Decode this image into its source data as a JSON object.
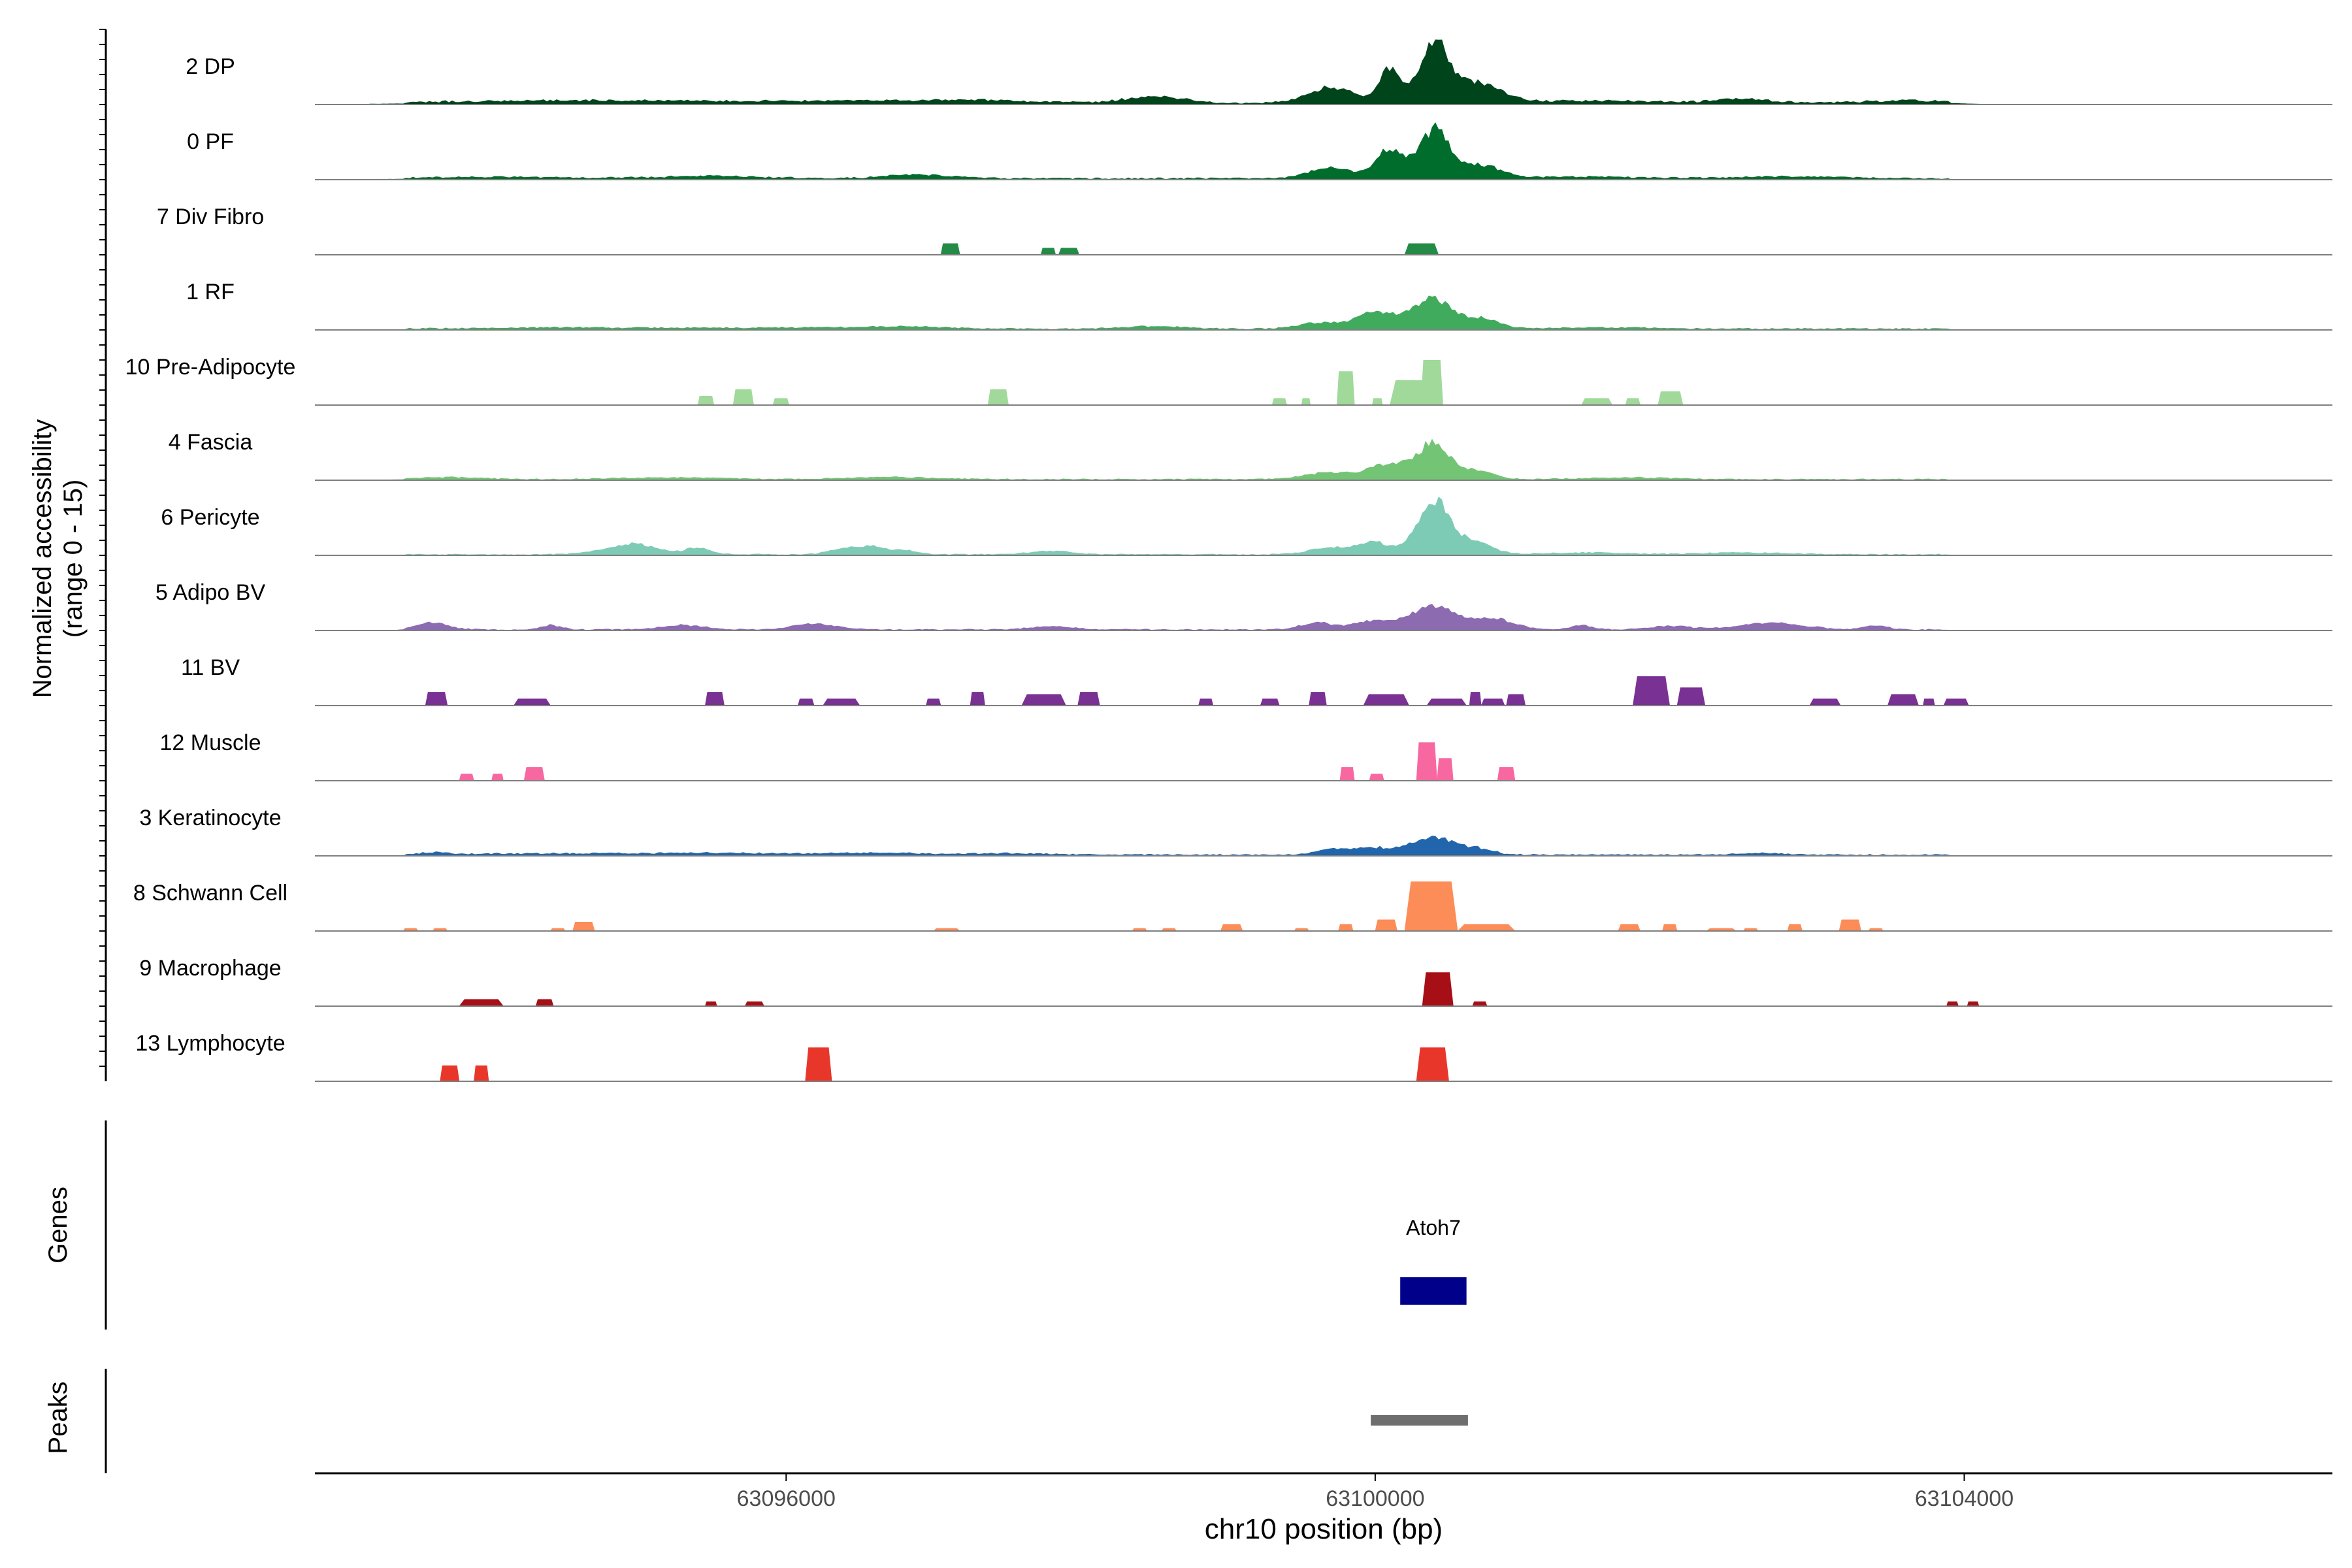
{
  "chart_data": {
    "type": "area",
    "title": "",
    "chromosome": "chr10",
    "xlabel": "chr10 position (bp)",
    "ylabel_line1": "Normalized accessibility",
    "ylabel_line2": "(range 0 - 15)",
    "ylim": [
      0,
      15
    ],
    "xlim": [
      63092800,
      63106500
    ],
    "x_ticks": [
      {
        "value": 63096000,
        "label": "63096000"
      },
      {
        "value": 63100000,
        "label": "63100000"
      },
      {
        "value": 63104000,
        "label": "63104000"
      }
    ],
    "track_labels": {
      "genes": "Genes",
      "peaks": "Peaks"
    },
    "series": [
      {
        "name": "2 DP",
        "color": "#00441B",
        "baseline": 0.45,
        "peaks": [
          [
            63094200,
            0.4,
            900
          ],
          [
            63095300,
            0.4,
            900
          ],
          [
            63096700,
            0.5,
            700
          ],
          [
            63097400,
            0.4,
            500
          ],
          [
            63098500,
            1.5,
            260
          ],
          [
            63099700,
            3.5,
            220
          ],
          [
            63100100,
            7.5,
            100
          ],
          [
            63100400,
            12.5,
            140
          ],
          [
            63100700,
            4.5,
            220
          ],
          [
            63101500,
            0.5,
            600
          ],
          [
            63102500,
            0.9,
            250
          ],
          [
            63103600,
            0.5,
            400
          ]
        ]
      },
      {
        "name": "0 PF",
        "color": "#006D2C",
        "baseline": 0.35,
        "peaks": [
          [
            63094000,
            0.3,
            700
          ],
          [
            63095500,
            0.5,
            500
          ],
          [
            63096900,
            0.9,
            300
          ],
          [
            63099700,
            2.5,
            200
          ],
          [
            63100100,
            6.5,
            130
          ],
          [
            63100400,
            10.5,
            140
          ],
          [
            63100700,
            3.0,
            200
          ],
          [
            63101400,
            0.4,
            500
          ],
          [
            63102800,
            0.4,
            500
          ]
        ]
      },
      {
        "name": "7 Div Fibro",
        "color": "#238B45",
        "baseline": 0,
        "blocks": [
          [
            63097050,
            63097180,
            2.5
          ],
          [
            63097730,
            63097830,
            1.5
          ],
          [
            63097850,
            63097990,
            1.5
          ],
          [
            63100200,
            63100430,
            2.5
          ]
        ]
      },
      {
        "name": "1 RF",
        "color": "#41AB5D",
        "baseline": 0.3,
        "peaks": [
          [
            63094500,
            0.3,
            800
          ],
          [
            63096000,
            0.3,
            600
          ],
          [
            63096800,
            0.5,
            400
          ],
          [
            63098500,
            0.6,
            300
          ],
          [
            63099600,
            1.3,
            200
          ],
          [
            63100000,
            3.5,
            200
          ],
          [
            63100400,
            6.5,
            200
          ],
          [
            63100750,
            2.0,
            150
          ],
          [
            63101500,
            0.3,
            500
          ]
        ]
      },
      {
        "name": "10 Pre-Adipocyte",
        "color": "#A1D99B",
        "baseline": 0,
        "blocks": [
          [
            63095400,
            63095510,
            2.0
          ],
          [
            63095640,
            63095780,
            3.5
          ],
          [
            63095910,
            63096020,
            1.5
          ],
          [
            63097370,
            63097510,
            3.5
          ],
          [
            63099300,
            63099400,
            1.5
          ],
          [
            63099500,
            63099560,
            1.5
          ],
          [
            63099740,
            63099860,
            7.5
          ],
          [
            63099980,
            63100050,
            1.5
          ],
          [
            63100100,
            63100430,
            5.5
          ],
          [
            63100310,
            63100460,
            10.0
          ],
          [
            63101400,
            63101610,
            1.5
          ],
          [
            63101700,
            63101800,
            1.5
          ],
          [
            63101920,
            63102090,
            3.0
          ]
        ]
      },
      {
        "name": "4 Fascia",
        "color": "#74C476",
        "baseline": 0.25,
        "peaks": [
          [
            63093700,
            0.5,
            300
          ],
          [
            63095200,
            0.4,
            500
          ],
          [
            63096700,
            0.5,
            400
          ],
          [
            63099700,
            1.5,
            250
          ],
          [
            63100100,
            3.5,
            180
          ],
          [
            63100400,
            8.0,
            150
          ],
          [
            63100700,
            2.0,
            150
          ],
          [
            63101700,
            0.4,
            400
          ]
        ]
      },
      {
        "name": "6 Pericyte",
        "color": "#7ECBB5",
        "baseline": 0.25,
        "peaks": [
          [
            63094800,
            0.8,
            200
          ],
          [
            63095000,
            2.0,
            200
          ],
          [
            63095400,
            1.5,
            120
          ],
          [
            63096400,
            1.3,
            150
          ],
          [
            63096600,
            1.5,
            120
          ],
          [
            63096800,
            0.9,
            120
          ],
          [
            63097800,
            0.8,
            200
          ],
          [
            63099700,
            1.5,
            200
          ],
          [
            63100000,
            2.5,
            150
          ],
          [
            63100400,
            12.0,
            160
          ],
          [
            63100700,
            2.5,
            150
          ],
          [
            63101400,
            0.4,
            400
          ],
          [
            63102500,
            0.4,
            400
          ]
        ]
      },
      {
        "name": "5 Adipo BV",
        "color": "#8C6BB1",
        "baseline": 0.25,
        "peaks": [
          [
            63093600,
            1.5,
            150
          ],
          [
            63094400,
            1.0,
            100
          ],
          [
            63095300,
            1.0,
            200
          ],
          [
            63096200,
            1.3,
            200
          ],
          [
            63097800,
            0.7,
            200
          ],
          [
            63099600,
            1.5,
            150
          ],
          [
            63100000,
            2.0,
            200
          ],
          [
            63100400,
            5.5,
            200
          ],
          [
            63100800,
            2.5,
            200
          ],
          [
            63101400,
            1.0,
            100
          ],
          [
            63102000,
            0.8,
            200
          ],
          [
            63102700,
            1.5,
            300
          ],
          [
            63103400,
            1.0,
            100
          ]
        ]
      },
      {
        "name": "11 BV",
        "color": "#7A3194",
        "baseline": 0,
        "blocks": [
          [
            63093550,
            63093700,
            3.0
          ],
          [
            63094150,
            63094400,
            1.5
          ],
          [
            63095450,
            63095580,
            3.0
          ],
          [
            63096080,
            63096190,
            1.5
          ],
          [
            63096250,
            63096500,
            1.5
          ],
          [
            63096950,
            63097050,
            1.5
          ],
          [
            63097250,
            63097350,
            3.0
          ],
          [
            63097600,
            63097900,
            2.5
          ],
          [
            63097980,
            63098130,
            3.0
          ],
          [
            63098800,
            63098900,
            1.5
          ],
          [
            63099220,
            63099350,
            1.5
          ],
          [
            63099550,
            63099670,
            3.0
          ],
          [
            63099920,
            63100230,
            2.5
          ],
          [
            63100350,
            63100620,
            1.5
          ],
          [
            63100640,
            63100720,
            3.0
          ],
          [
            63100720,
            63100880,
            1.5
          ],
          [
            63100890,
            63101020,
            2.5
          ],
          [
            63101750,
            63102000,
            6.5
          ],
          [
            63102050,
            63102240,
            4.0
          ],
          [
            63102950,
            63103160,
            1.5
          ],
          [
            63103480,
            63103690,
            2.5
          ],
          [
            63103720,
            63103800,
            1.5
          ],
          [
            63103860,
            63104030,
            1.5
          ]
        ]
      },
      {
        "name": "12 Muscle",
        "color": "#F768A1",
        "baseline": 0,
        "blocks": [
          [
            63093780,
            63093880,
            1.5
          ],
          [
            63094000,
            63094080,
            1.5
          ],
          [
            63094220,
            63094360,
            3.0
          ],
          [
            63099760,
            63099860,
            3.0
          ],
          [
            63099960,
            63100060,
            1.5
          ],
          [
            63100280,
            63100420,
            8.5
          ],
          [
            63100420,
            63100530,
            5.0
          ],
          [
            63100830,
            63100950,
            3.0
          ]
        ]
      },
      {
        "name": "3 Keratinocyte",
        "color": "#2166AC",
        "baseline": 0.3,
        "peaks": [
          [
            63093600,
            0.5,
            120
          ],
          [
            63094400,
            0.3,
            700
          ],
          [
            63095500,
            0.4,
            600
          ],
          [
            63096600,
            0.4,
            500
          ],
          [
            63097500,
            0.3,
            400
          ],
          [
            63099700,
            1.2,
            150
          ],
          [
            63100000,
            1.5,
            200
          ],
          [
            63100400,
            3.8,
            200
          ],
          [
            63100700,
            1.2,
            150
          ],
          [
            63102600,
            0.4,
            200
          ]
        ]
      },
      {
        "name": "8 Schwann Cell",
        "color": "#FC8D59",
        "baseline": 0,
        "blocks": [
          [
            63093400,
            63093500,
            0.6
          ],
          [
            63093600,
            63093700,
            0.6
          ],
          [
            63094400,
            63094500,
            0.6
          ],
          [
            63094550,
            63094700,
            2.0
          ],
          [
            63097000,
            63097180,
            0.6
          ],
          [
            63098350,
            63098450,
            0.6
          ],
          [
            63098550,
            63098650,
            0.6
          ],
          [
            63098950,
            63099100,
            1.5
          ],
          [
            63099450,
            63099550,
            0.6
          ],
          [
            63099750,
            63099850,
            1.5
          ],
          [
            63100000,
            63100150,
            2.5
          ],
          [
            63100200,
            63100560,
            11.0
          ],
          [
            63100560,
            63100950,
            1.5
          ],
          [
            63101650,
            63101800,
            1.5
          ],
          [
            63101950,
            63102050,
            1.5
          ],
          [
            63102250,
            63102450,
            0.6
          ],
          [
            63102500,
            63102600,
            0.6
          ],
          [
            63102800,
            63102900,
            1.5
          ],
          [
            63103150,
            63103300,
            2.5
          ],
          [
            63103350,
            63103450,
            0.6
          ]
        ]
      },
      {
        "name": "9 Macrophage",
        "color": "#A50F15",
        "baseline": 0,
        "blocks": [
          [
            63093780,
            63094080,
            1.5
          ],
          [
            63094300,
            63094420,
            1.5
          ],
          [
            63095450,
            63095530,
            1.0
          ],
          [
            63095720,
            63095850,
            1.0
          ],
          [
            63100320,
            63100530,
            7.5
          ],
          [
            63100660,
            63100760,
            1.0
          ],
          [
            63103880,
            63103960,
            1.0
          ],
          [
            63104020,
            63104100,
            1.0
          ]
        ]
      },
      {
        "name": "13 Lymphocyte",
        "color": "#E8372A",
        "baseline": 0,
        "blocks": [
          [
            63093650,
            63093780,
            3.5
          ],
          [
            63093880,
            63093980,
            3.5
          ],
          [
            63096130,
            63096310,
            7.5
          ],
          [
            63100280,
            63100500,
            7.5
          ],
          [
            63100360,
            63100470,
            7.5
          ]
        ]
      }
    ],
    "genes": [
      {
        "name": "Atoh7",
        "start": 63100170,
        "end": 63100620,
        "color": "#00008B"
      }
    ],
    "peak_regions": [
      {
        "start": 63099970,
        "end": 63100630,
        "color": "#6E6E6E"
      }
    ]
  }
}
